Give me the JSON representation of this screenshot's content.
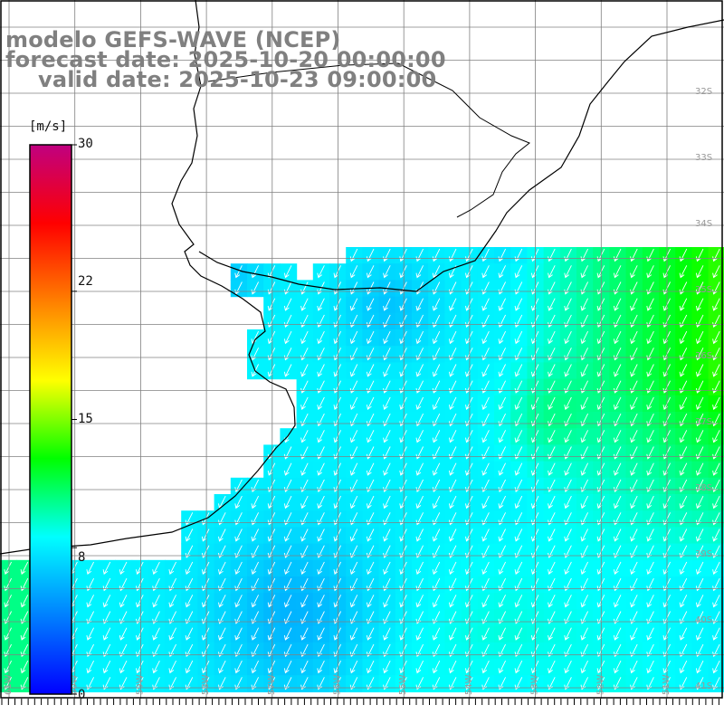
{
  "titles": {
    "line1": "modelo GEFS-WAVE (NCEP)",
    "line2": "forecast date: 2025-10-20 00:00:00",
    "line3": "valid date: 2025-10-23 09:00:00"
  },
  "colorbar": {
    "unit": "[m/s]",
    "min": 0,
    "max": 30,
    "tick_labels": [
      "30",
      "22",
      "15",
      "8",
      "0"
    ],
    "tick_values": [
      30,
      22,
      15,
      8,
      0
    ],
    "colors": [
      "#0000ff",
      "#0080ff",
      "#00ffff",
      "#00ff00",
      "#ffff00",
      "#ff8000",
      "#ff0000",
      "#c00080"
    ]
  },
  "map": {
    "field": "wind speed",
    "lon_labels": [
      "61W",
      "60W",
      "59W",
      "58W",
      "57W",
      "56W",
      "55W",
      "54W",
      "53W",
      "52W",
      "51W"
    ],
    "lat_labels": [
      "32S",
      "33S",
      "34S",
      "35S",
      "36S",
      "37S",
      "38S",
      "39S",
      "40S",
      "41S"
    ],
    "wind_direction": "from north-east",
    "colors": {
      "land": "#ffffff",
      "grid": "#808080",
      "coast": "#000000",
      "arrows": "#ffffff"
    }
  }
}
